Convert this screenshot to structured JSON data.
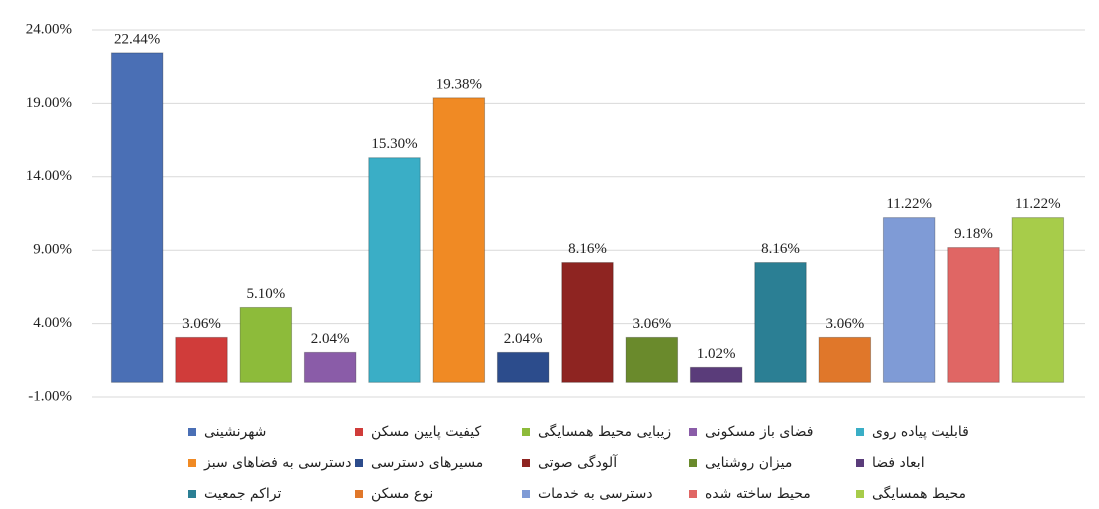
{
  "chart_data": {
    "type": "bar",
    "categories": [
      null
    ],
    "series": [
      {
        "name": "شهرنشینی",
        "color": "#4a6fb5",
        "values": [
          22.44
        ],
        "value_labels": [
          "22.44%"
        ]
      },
      {
        "name": "کیفیت پایین مسکن",
        "color": "#d03c3a",
        "values": [
          3.06
        ],
        "value_labels": [
          "3.06%"
        ]
      },
      {
        "name": "زیبایی محیط همسایگی",
        "color": "#8dbb3a",
        "values": [
          5.1
        ],
        "value_labels": [
          "5.10%"
        ]
      },
      {
        "name": "فضای باز مسکونی",
        "color": "#8a5ca8",
        "values": [
          2.04
        ],
        "value_labels": [
          "2.04%"
        ]
      },
      {
        "name": "قابلیت پیاده روی",
        "color": "#3aaec6",
        "values": [
          15.3
        ],
        "value_labels": [
          "15.30%"
        ]
      },
      {
        "name": "دسترسی به فضاهای سبز",
        "color": "#f08a24",
        "values": [
          19.38
        ],
        "value_labels": [
          "19.38%"
        ]
      },
      {
        "name": "مسیرهای دسترسی",
        "color": "#2c4c8c",
        "values": [
          2.04
        ],
        "value_labels": [
          "2.04%"
        ]
      },
      {
        "name": "آلودگی صوتی",
        "color": "#8e2421",
        "values": [
          8.16
        ],
        "value_labels": [
          "8.16%"
        ]
      },
      {
        "name": "میزان روشنایی",
        "color": "#6a8a2c",
        "values": [
          3.06
        ],
        "value_labels": [
          "3.06%"
        ]
      },
      {
        "name": "ابعاد فضا",
        "color": "#5a3c7a",
        "values": [
          1.02
        ],
        "value_labels": [
          "1.02%"
        ]
      },
      {
        "name": "تراکم جمعیت",
        "color": "#2b7f94",
        "values": [
          8.16
        ],
        "value_labels": [
          "8.16%"
        ]
      },
      {
        "name": "نوع مسکن",
        "color": "#e0772a",
        "values": [
          3.06
        ],
        "value_labels": [
          "3.06%"
        ]
      },
      {
        "name": "دسترسی به خدمات",
        "color": "#7f9bd6",
        "values": [
          11.22
        ],
        "value_labels": [
          "11.22%"
        ]
      },
      {
        "name": "محیط ساخته شده",
        "color": "#e06664",
        "values": [
          9.18
        ],
        "value_labels": [
          "9.18%"
        ]
      },
      {
        "name": "محیط همسایگی",
        "color": "#a7cc4a",
        "values": [
          11.22
        ],
        "value_labels": [
          "11.22%"
        ]
      }
    ],
    "ylim": [
      -1,
      24
    ],
    "yticks": [
      {
        "value": -1,
        "label": "-1.00%"
      },
      {
        "value": 4,
        "label": "4.00%"
      },
      {
        "value": 9,
        "label": "9.00%"
      },
      {
        "value": 14,
        "label": "14.00%"
      },
      {
        "value": 19,
        "label": "19.00%"
      },
      {
        "value": 24,
        "label": "24.00%"
      }
    ],
    "grid": true
  }
}
